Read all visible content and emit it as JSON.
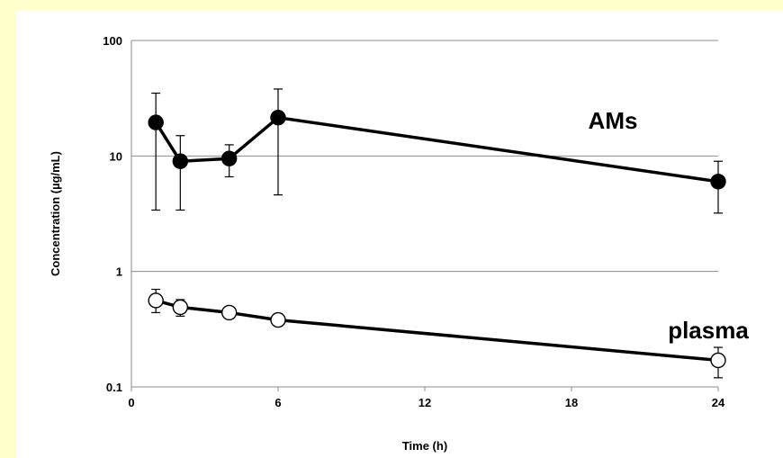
{
  "chart_data": {
    "type": "line",
    "title": "",
    "xlabel": "Time (h)",
    "ylabel": "Concentration  (µg/mL)",
    "yscale": "log",
    "xlim": [
      0,
      24
    ],
    "ylim": [
      0.1,
      100
    ],
    "x_ticks": [
      "0",
      "6",
      "12",
      "18",
      "24"
    ],
    "y_ticks": [
      "0.1",
      "1",
      "10",
      "100"
    ],
    "grid": "horizontal",
    "series": [
      {
        "name": "AMs",
        "marker": "filled-circle",
        "x": [
          1,
          2,
          4,
          6,
          24
        ],
        "y": [
          19.5,
          9.0,
          9.5,
          21.5,
          6.0
        ],
        "err_low": [
          3.4,
          3.4,
          6.6,
          4.6,
          3.2
        ],
        "err_high": [
          35,
          15,
          12.5,
          38,
          9.0
        ]
      },
      {
        "name": "plasma",
        "marker": "open-circle",
        "x": [
          1,
          2,
          4,
          6,
          24
        ],
        "y": [
          0.56,
          0.49,
          0.44,
          0.38,
          0.17
        ],
        "err_low": [
          0.44,
          0.41,
          0.44,
          0.38,
          0.12
        ],
        "err_high": [
          0.7,
          0.57,
          0.44,
          0.38,
          0.22
        ]
      }
    ]
  }
}
